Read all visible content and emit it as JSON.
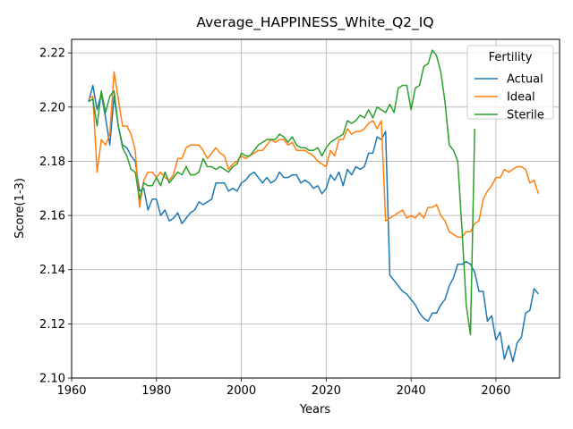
{
  "chart_data": {
    "type": "line",
    "title": "Average_HAPPINESS_White_Q2_IQ",
    "xlabel": "Years",
    "ylabel": "Score(1-3)",
    "xlim": [
      1960,
      2075
    ],
    "ylim": [
      2.1,
      2.225
    ],
    "xticks": [
      1960,
      1980,
      2000,
      2020,
      2040,
      2060
    ],
    "yticks": [
      2.1,
      2.12,
      2.14,
      2.16,
      2.18,
      2.2,
      2.22
    ],
    "ytick_labels": [
      "2.10",
      "2.12",
      "2.14",
      "2.16",
      "2.18",
      "2.20",
      "2.22"
    ],
    "grid": true,
    "legend": {
      "title": "Fertility",
      "placement": "top-right"
    },
    "series": [
      {
        "name": "Actual",
        "color": "#1f77b4",
        "points": [
          [
            1964,
            2.202
          ],
          [
            1965,
            2.208
          ],
          [
            1966,
            2.199
          ],
          [
            1967,
            2.205
          ],
          [
            1968,
            2.196
          ],
          [
            1969,
            2.186
          ],
          [
            1970,
            2.204
          ],
          [
            1971,
            2.193
          ],
          [
            1972,
            2.186
          ],
          [
            1973,
            2.185
          ],
          [
            1974,
            2.182
          ],
          [
            1975,
            2.18
          ],
          [
            1976,
            2.169
          ],
          [
            1977,
            2.17
          ],
          [
            1978,
            2.162
          ],
          [
            1979,
            2.166
          ],
          [
            1980,
            2.166
          ],
          [
            1981,
            2.16
          ],
          [
            1982,
            2.162
          ],
          [
            1983,
            2.158
          ],
          [
            1984,
            2.159
          ],
          [
            1985,
            2.161
          ],
          [
            1986,
            2.157
          ],
          [
            1987,
            2.159
          ],
          [
            1988,
            2.161
          ],
          [
            1989,
            2.162
          ],
          [
            1990,
            2.165
          ],
          [
            1991,
            2.164
          ],
          [
            1992,
            2.165
          ],
          [
            1993,
            2.166
          ],
          [
            1994,
            2.172
          ],
          [
            1995,
            2.172
          ],
          [
            1996,
            2.172
          ],
          [
            1997,
            2.169
          ],
          [
            1998,
            2.17
          ],
          [
            1999,
            2.169
          ],
          [
            2000,
            2.172
          ],
          [
            2001,
            2.173
          ],
          [
            2002,
            2.175
          ],
          [
            2003,
            2.176
          ],
          [
            2004,
            2.174
          ],
          [
            2005,
            2.172
          ],
          [
            2006,
            2.174
          ],
          [
            2007,
            2.172
          ],
          [
            2008,
            2.173
          ],
          [
            2009,
            2.176
          ],
          [
            2010,
            2.174
          ],
          [
            2011,
            2.174
          ],
          [
            2012,
            2.175
          ],
          [
            2013,
            2.175
          ],
          [
            2014,
            2.172
          ],
          [
            2015,
            2.173
          ],
          [
            2016,
            2.172
          ],
          [
            2017,
            2.17
          ],
          [
            2018,
            2.171
          ],
          [
            2019,
            2.168
          ],
          [
            2020,
            2.17
          ],
          [
            2021,
            2.175
          ],
          [
            2022,
            2.173
          ],
          [
            2023,
            2.176
          ],
          [
            2024,
            2.171
          ],
          [
            2025,
            2.177
          ],
          [
            2026,
            2.175
          ],
          [
            2027,
            2.178
          ],
          [
            2028,
            2.177
          ],
          [
            2029,
            2.178
          ],
          [
            2030,
            2.183
          ],
          [
            2031,
            2.183
          ],
          [
            2032,
            2.189
          ],
          [
            2033,
            2.188
          ],
          [
            2034,
            2.191
          ],
          [
            2035,
            2.138
          ],
          [
            2036,
            2.136
          ],
          [
            2037,
            2.134
          ],
          [
            2038,
            2.132
          ],
          [
            2039,
            2.131
          ],
          [
            2040,
            2.129
          ],
          [
            2041,
            2.127
          ],
          [
            2042,
            2.124
          ],
          [
            2043,
            2.122
          ],
          [
            2044,
            2.121
          ],
          [
            2045,
            2.124
          ],
          [
            2046,
            2.124
          ],
          [
            2047,
            2.127
          ],
          [
            2048,
            2.129
          ],
          [
            2049,
            2.134
          ],
          [
            2050,
            2.137
          ],
          [
            2051,
            2.142
          ],
          [
            2052,
            2.142
          ],
          [
            2053,
            2.143
          ],
          [
            2054,
            2.142
          ],
          [
            2055,
            2.139
          ],
          [
            2056,
            2.132
          ],
          [
            2057,
            2.132
          ],
          [
            2058,
            2.121
          ],
          [
            2059,
            2.123
          ],
          [
            2060,
            2.114
          ],
          [
            2061,
            2.117
          ],
          [
            2062,
            2.107
          ],
          [
            2063,
            2.112
          ],
          [
            2064,
            2.106
          ],
          [
            2065,
            2.113
          ],
          [
            2066,
            2.115
          ],
          [
            2067,
            2.124
          ],
          [
            2068,
            2.125
          ],
          [
            2069,
            2.133
          ],
          [
            2070,
            2.131
          ]
        ]
      },
      {
        "name": "Ideal",
        "color": "#ff7f0e",
        "points": [
          [
            1964,
            2.203
          ],
          [
            1965,
            2.204
          ],
          [
            1966,
            2.176
          ],
          [
            1967,
            2.188
          ],
          [
            1968,
            2.186
          ],
          [
            1969,
            2.19
          ],
          [
            1970,
            2.213
          ],
          [
            1971,
            2.203
          ],
          [
            1972,
            2.193
          ],
          [
            1973,
            2.193
          ],
          [
            1974,
            2.19
          ],
          [
            1975,
            2.184
          ],
          [
            1976,
            2.163
          ],
          [
            1977,
            2.173
          ],
          [
            1978,
            2.176
          ],
          [
            1979,
            2.176
          ],
          [
            1980,
            2.174
          ],
          [
            1981,
            2.176
          ],
          [
            1982,
            2.174
          ],
          [
            1983,
            2.173
          ],
          [
            1984,
            2.175
          ],
          [
            1985,
            2.181
          ],
          [
            1986,
            2.181
          ],
          [
            1987,
            2.185
          ],
          [
            1988,
            2.186
          ],
          [
            1989,
            2.186
          ],
          [
            1990,
            2.186
          ],
          [
            1991,
            2.184
          ],
          [
            1992,
            2.181
          ],
          [
            1993,
            2.183
          ],
          [
            1994,
            2.185
          ],
          [
            1995,
            2.183
          ],
          [
            1996,
            2.182
          ],
          [
            1997,
            2.177
          ],
          [
            1998,
            2.179
          ],
          [
            1999,
            2.18
          ],
          [
            2000,
            2.182
          ],
          [
            2001,
            2.181
          ],
          [
            2002,
            2.182
          ],
          [
            2003,
            2.183
          ],
          [
            2004,
            2.184
          ],
          [
            2005,
            2.184
          ],
          [
            2006,
            2.186
          ],
          [
            2007,
            2.188
          ],
          [
            2008,
            2.187
          ],
          [
            2009,
            2.188
          ],
          [
            2010,
            2.188
          ],
          [
            2011,
            2.186
          ],
          [
            2012,
            2.187
          ],
          [
            2013,
            2.184
          ],
          [
            2014,
            2.184
          ],
          [
            2015,
            2.184
          ],
          [
            2016,
            2.183
          ],
          [
            2017,
            2.182
          ],
          [
            2018,
            2.18
          ],
          [
            2019,
            2.179
          ],
          [
            2020,
            2.178
          ],
          [
            2021,
            2.184
          ],
          [
            2022,
            2.182
          ],
          [
            2023,
            2.188
          ],
          [
            2024,
            2.188
          ],
          [
            2025,
            2.192
          ],
          [
            2026,
            2.19
          ],
          [
            2027,
            2.191
          ],
          [
            2028,
            2.191
          ],
          [
            2029,
            2.192
          ],
          [
            2030,
            2.194
          ],
          [
            2031,
            2.195
          ],
          [
            2032,
            2.192
          ],
          [
            2033,
            2.195
          ],
          [
            2034,
            2.158
          ],
          [
            2035,
            2.159
          ],
          [
            2036,
            2.16
          ],
          [
            2037,
            2.161
          ],
          [
            2038,
            2.162
          ],
          [
            2039,
            2.159
          ],
          [
            2040,
            2.16
          ],
          [
            2041,
            2.159
          ],
          [
            2042,
            2.161
          ],
          [
            2043,
            2.159
          ],
          [
            2044,
            2.163
          ],
          [
            2045,
            2.163
          ],
          [
            2046,
            2.164
          ],
          [
            2047,
            2.16
          ],
          [
            2048,
            2.158
          ],
          [
            2049,
            2.154
          ],
          [
            2050,
            2.153
          ],
          [
            2051,
            2.152
          ],
          [
            2052,
            2.152
          ],
          [
            2053,
            2.154
          ],
          [
            2054,
            2.154
          ],
          [
            2055,
            2.157
          ],
          [
            2056,
            2.158
          ],
          [
            2057,
            2.166
          ],
          [
            2058,
            2.169
          ],
          [
            2059,
            2.171
          ],
          [
            2060,
            2.174
          ],
          [
            2061,
            2.174
          ],
          [
            2062,
            2.177
          ],
          [
            2063,
            2.176
          ],
          [
            2064,
            2.177
          ],
          [
            2065,
            2.178
          ],
          [
            2066,
            2.178
          ],
          [
            2067,
            2.177
          ],
          [
            2068,
            2.172
          ],
          [
            2069,
            2.173
          ],
          [
            2070,
            2.168
          ]
        ]
      },
      {
        "name": "Sterile",
        "color": "#2ca02c",
        "points": [
          [
            1964,
            2.202
          ],
          [
            1965,
            2.203
          ],
          [
            1966,
            2.193
          ],
          [
            1967,
            2.206
          ],
          [
            1968,
            2.198
          ],
          [
            1969,
            2.204
          ],
          [
            1970,
            2.206
          ],
          [
            1971,
            2.193
          ],
          [
            1972,
            2.185
          ],
          [
            1973,
            2.182
          ],
          [
            1974,
            2.177
          ],
          [
            1975,
            2.176
          ],
          [
            1976,
            2.166
          ],
          [
            1977,
            2.172
          ],
          [
            1978,
            2.171
          ],
          [
            1979,
            2.171
          ],
          [
            1980,
            2.174
          ],
          [
            1981,
            2.171
          ],
          [
            1982,
            2.176
          ],
          [
            1983,
            2.172
          ],
          [
            1984,
            2.174
          ],
          [
            1985,
            2.176
          ],
          [
            1986,
            2.175
          ],
          [
            1987,
            2.178
          ],
          [
            1988,
            2.175
          ],
          [
            1989,
            2.175
          ],
          [
            1990,
            2.176
          ],
          [
            1991,
            2.181
          ],
          [
            1992,
            2.178
          ],
          [
            1993,
            2.178
          ],
          [
            1994,
            2.177
          ],
          [
            1995,
            2.178
          ],
          [
            1996,
            2.177
          ],
          [
            1997,
            2.176
          ],
          [
            1998,
            2.178
          ],
          [
            1999,
            2.179
          ],
          [
            2000,
            2.183
          ],
          [
            2001,
            2.182
          ],
          [
            2002,
            2.182
          ],
          [
            2003,
            2.184
          ],
          [
            2004,
            2.186
          ],
          [
            2005,
            2.187
          ],
          [
            2006,
            2.188
          ],
          [
            2007,
            2.188
          ],
          [
            2008,
            2.188
          ],
          [
            2009,
            2.19
          ],
          [
            2010,
            2.189
          ],
          [
            2011,
            2.187
          ],
          [
            2012,
            2.189
          ],
          [
            2013,
            2.186
          ],
          [
            2014,
            2.185
          ],
          [
            2015,
            2.185
          ],
          [
            2016,
            2.184
          ],
          [
            2017,
            2.184
          ],
          [
            2018,
            2.185
          ],
          [
            2019,
            2.182
          ],
          [
            2020,
            2.185
          ],
          [
            2021,
            2.187
          ],
          [
            2022,
            2.188
          ],
          [
            2023,
            2.189
          ],
          [
            2024,
            2.19
          ],
          [
            2025,
            2.195
          ],
          [
            2026,
            2.194
          ],
          [
            2027,
            2.195
          ],
          [
            2028,
            2.197
          ],
          [
            2029,
            2.196
          ],
          [
            2030,
            2.199
          ],
          [
            2031,
            2.196
          ],
          [
            2032,
            2.2
          ],
          [
            2033,
            2.199
          ],
          [
            2034,
            2.198
          ],
          [
            2035,
            2.201
          ],
          [
            2036,
            2.198
          ],
          [
            2037,
            2.207
          ],
          [
            2038,
            2.208
          ],
          [
            2039,
            2.208
          ],
          [
            2040,
            2.199
          ],
          [
            2041,
            2.207
          ],
          [
            2042,
            2.208
          ],
          [
            2043,
            2.215
          ],
          [
            2044,
            2.216
          ],
          [
            2045,
            2.221
          ],
          [
            2046,
            2.219
          ],
          [
            2047,
            2.213
          ],
          [
            2048,
            2.202
          ],
          [
            2049,
            2.186
          ],
          [
            2050,
            2.184
          ],
          [
            2051,
            2.18
          ],
          [
            2052,
            2.155
          ],
          [
            2053,
            2.127
          ],
          [
            2054,
            2.116
          ],
          [
            2055,
            2.192
          ]
        ]
      }
    ]
  }
}
